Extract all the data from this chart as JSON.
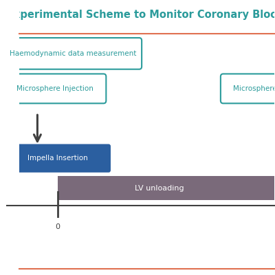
{
  "title": "Experimental Scheme to Monitor Coronary Blood Flow in a Pig Model of MI",
  "title_color": "#2b9b9b",
  "title_fontsize": 11,
  "background_color": "#ffffff",
  "top_line_color": "#e07050",
  "bottom_line_color": "#e07050",
  "box1_text": "Haemodynamic data measurement",
  "box1_color": "#2b9b9b",
  "box1_border": "#2b9b9b",
  "box1_bg": "#ffffff",
  "box2_text": "Microsphere Injection",
  "box2_color": "#2b9b9b",
  "box2_border": "#2b9b9b",
  "box2_bg": "#ffffff",
  "box3_text": "Microsphere Injection",
  "box3_color": "#2b9b9b",
  "box3_border": "#2b9b9b",
  "box3_bg": "#ffffff",
  "impella_text": "Impella Insertion",
  "impella_bg": "#2b5fa0",
  "impella_text_color": "#ffffff",
  "lv_text": "LV unloading",
  "lv_bg": "#7a6a7a",
  "lv_text_color": "#ffffff",
  "arrow_color": "#404040",
  "timeline_color": "#404040",
  "tick_label": "0",
  "tick_color": "#404040"
}
